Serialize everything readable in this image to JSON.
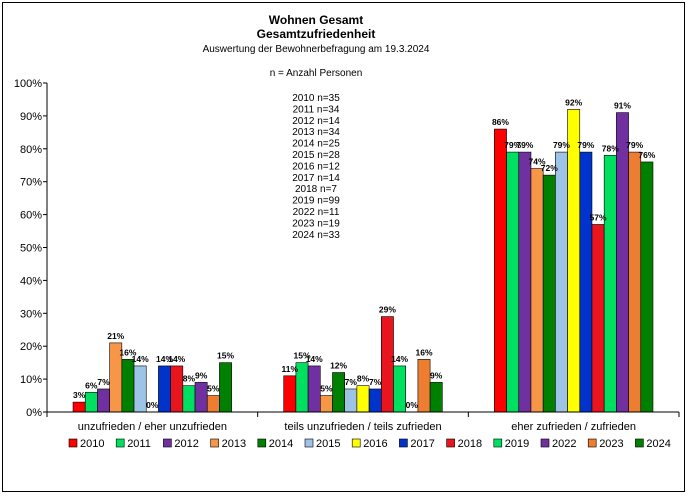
{
  "chart_data": {
    "type": "bar",
    "title": "Wohnen Gesamt",
    "subtitle": "Gesamtzufriedenheit",
    "subtitle2": "Auswertung der Bewohnerbefragung am 19.3.2024",
    "note": "n = Anzahl Personen",
    "ylim": [
      0,
      100
    ],
    "yticks": [
      "0%",
      "10%",
      "20%",
      "30%",
      "40%",
      "50%",
      "60%",
      "70%",
      "80%",
      "90%",
      "100%"
    ],
    "categories": [
      "unzufrieden / eher unzufrieden",
      "teils unzufrieden / teils zufrieden",
      "eher zufrieden / zufrieden"
    ],
    "grid": false,
    "legend_position": "bottom",
    "series": [
      {
        "name": "2010",
        "color": "#FF0000",
        "values": [
          3,
          11,
          86
        ],
        "labels": [
          "3%",
          "11%",
          "86%"
        ]
      },
      {
        "name": "2011",
        "color": "#00E060",
        "values": [
          6,
          15,
          79
        ],
        "labels": [
          "6%",
          "15%",
          "79%"
        ]
      },
      {
        "name": "2012",
        "color": "#7030A0",
        "values": [
          7,
          14,
          79
        ],
        "labels": [
          "7%",
          "14%",
          "79%"
        ]
      },
      {
        "name": "2013",
        "color": "#F79646",
        "values": [
          21,
          5,
          74
        ],
        "labels": [
          "21%",
          "5%",
          "74%"
        ]
      },
      {
        "name": "2014",
        "color": "#008000",
        "values": [
          16,
          12,
          72
        ],
        "labels": [
          "16%",
          "12%",
          "72%"
        ]
      },
      {
        "name": "2015",
        "color": "#9DC3E6",
        "values": [
          14,
          7,
          79
        ],
        "labels": [
          "14%",
          "7%",
          "79%"
        ]
      },
      {
        "name": "2016",
        "color": "#FFFF00",
        "values": [
          0,
          8,
          92
        ],
        "labels": [
          "0%",
          "8%",
          "92%"
        ]
      },
      {
        "name": "2017",
        "color": "#0033CC",
        "values": [
          14,
          7,
          79
        ],
        "labels": [
          "14%",
          "7%",
          "79%"
        ]
      },
      {
        "name": "2018",
        "color": "#E8141E",
        "values": [
          14,
          29,
          57
        ],
        "labels": [
          "14%",
          "29%",
          "57%"
        ]
      },
      {
        "name": "2019",
        "color": "#00E060",
        "values": [
          8,
          14,
          78
        ],
        "labels": [
          "8%",
          "14%",
          "78%"
        ]
      },
      {
        "name": "2022",
        "color": "#7030A0",
        "values": [
          9,
          0,
          91
        ],
        "labels": [
          "9%",
          "0%",
          "91%"
        ]
      },
      {
        "name": "2023",
        "color": "#ED7D31",
        "values": [
          5,
          16,
          79
        ],
        "labels": [
          "5%",
          "16%",
          "79%"
        ]
      },
      {
        "name": "2024",
        "color": "#008000",
        "values": [
          15,
          9,
          76
        ],
        "labels": [
          "15%",
          "9%",
          "76%"
        ]
      }
    ],
    "sample_sizes": [
      "2010 n=35",
      "2011 n=34",
      "2012 n=14",
      "2013 n=34",
      "2014 n=25",
      "2015 n=28",
      "2016 n=12",
      "2017 n=14",
      "2018 n=7",
      "2019 n=99",
      "2022 n=11",
      "2023 n=19",
      "2024 n=33"
    ]
  }
}
